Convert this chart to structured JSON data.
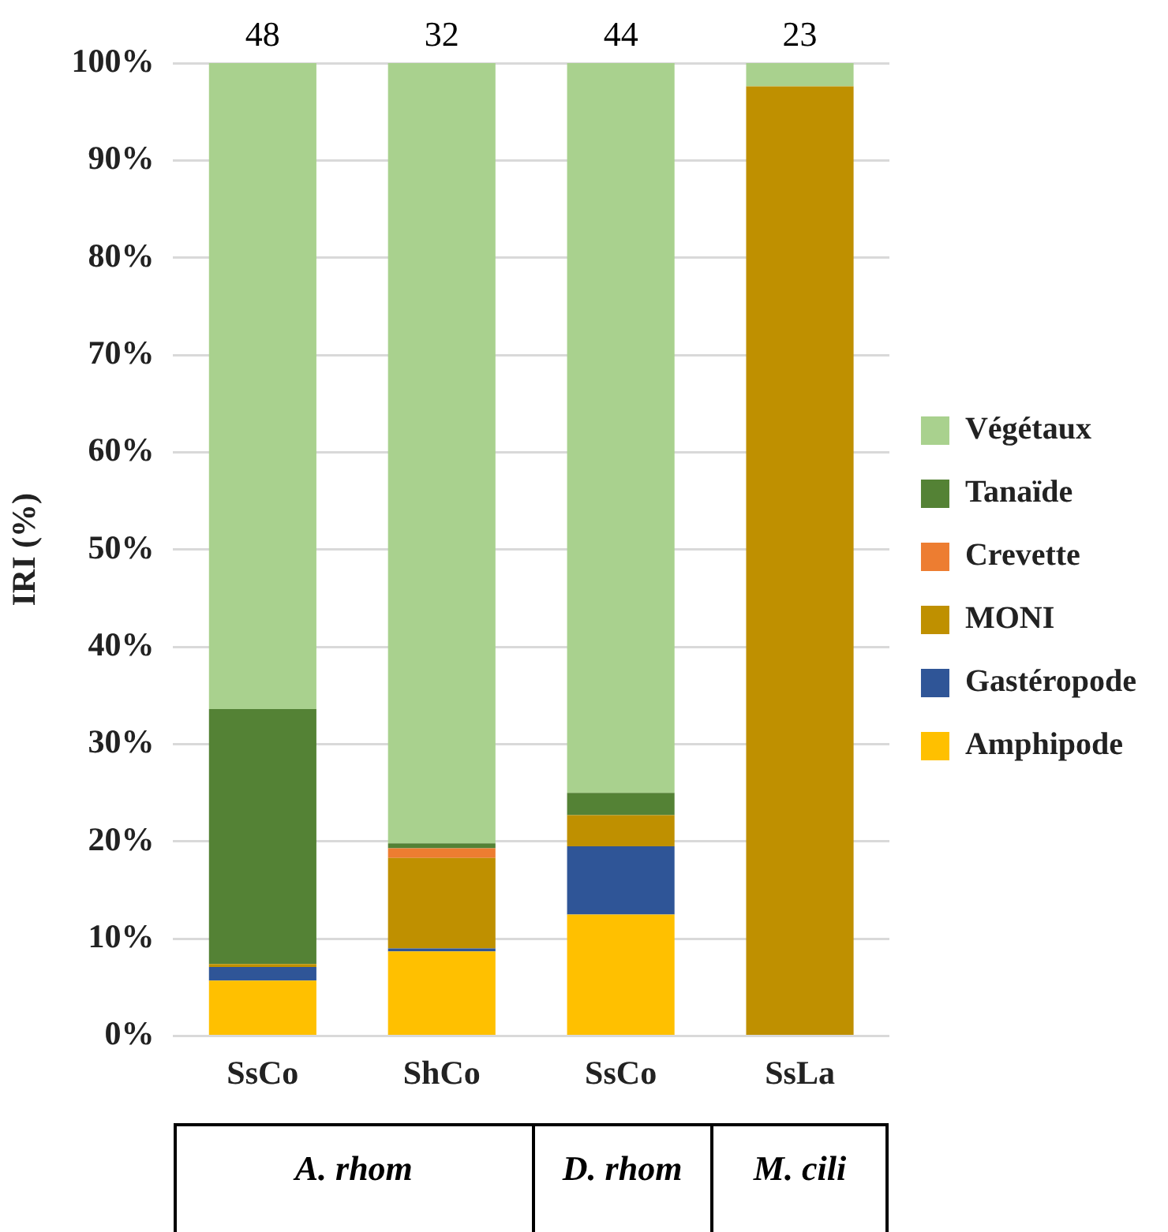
{
  "chart_data": {
    "type": "bar",
    "stacked": true,
    "ylabel": "IRI (%)",
    "categories": [
      "SsCo",
      "ShCo",
      "SsCo",
      "SsLa"
    ],
    "series": [
      {
        "name": "Amphipode",
        "color": "#ffc000",
        "values": [
          5.7,
          8.7,
          12.5,
          0
        ]
      },
      {
        "name": "Gastéropode",
        "color": "#2f5597",
        "values": [
          1.4,
          0.3,
          7.0,
          0
        ]
      },
      {
        "name": "MONI",
        "color": "#bf9000",
        "values": [
          0.3,
          9.3,
          3.2,
          97.6
        ]
      },
      {
        "name": "Crevette",
        "color": "#ed7d31",
        "values": [
          0,
          1.0,
          0,
          0
        ]
      },
      {
        "name": "Tanaïde",
        "color": "#548235",
        "values": [
          26.2,
          0.5,
          2.3,
          0
        ]
      },
      {
        "name": "Végétaux",
        "color": "#a9d18e",
        "values": [
          66.4,
          80.2,
          75.0,
          2.4
        ]
      }
    ],
    "ylim": [
      0,
      100
    ],
    "yticks": [
      {
        "value": 0,
        "label": "0%"
      },
      {
        "value": 10,
        "label": "10%"
      },
      {
        "value": 20,
        "label": "20%"
      },
      {
        "value": 30,
        "label": "30%"
      },
      {
        "value": 40,
        "label": "40%"
      },
      {
        "value": 50,
        "label": "50%"
      },
      {
        "value": 60,
        "label": "60%"
      },
      {
        "value": 70,
        "label": "70%"
      },
      {
        "value": 80,
        "label": "80%"
      },
      {
        "value": 90,
        "label": "90%"
      },
      {
        "value": 100,
        "label": "100%"
      }
    ],
    "grid": "y",
    "legend": "right",
    "annotations": [
      "48",
      "32",
      "44",
      "23",
      "A. rhom",
      "D. rhom",
      "M. cili"
    ]
  }
}
